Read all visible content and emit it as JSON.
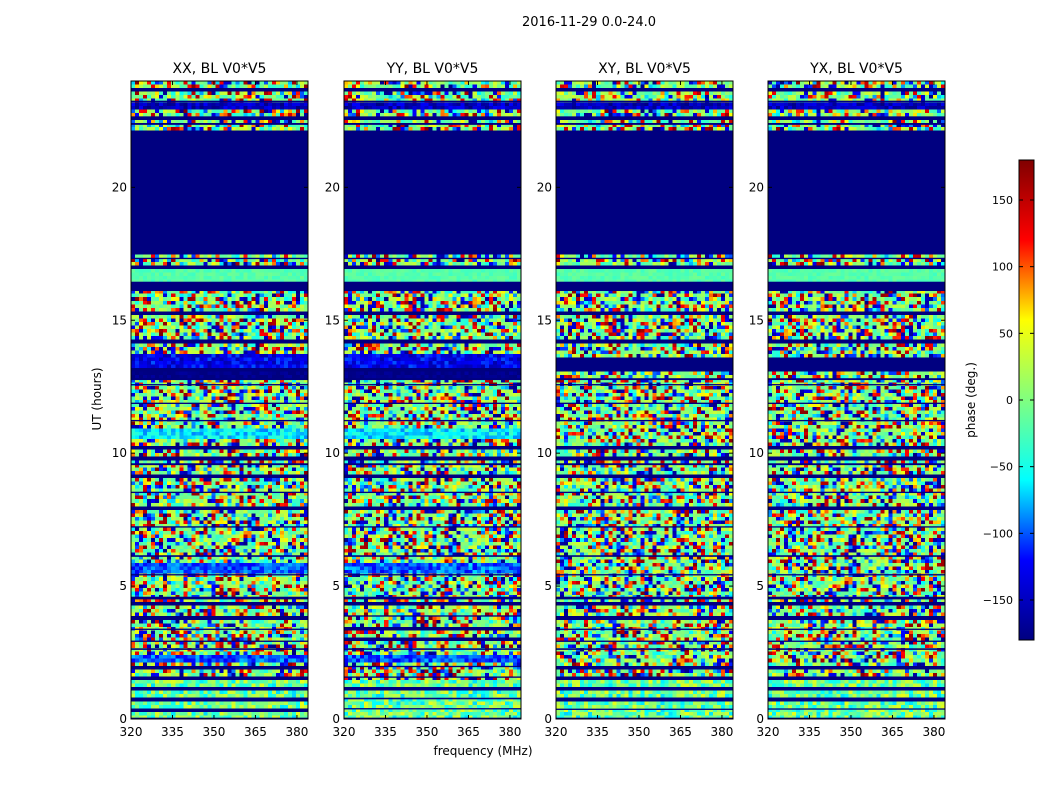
{
  "chart_data": {
    "type": "heatmap",
    "title": "2016-11-29 0.0-24.0",
    "xlabel": "frequency (MHz)",
    "ylabel": "UT (hours)",
    "colorbar_label": "phase (deg.)",
    "xlim": [
      320,
      384
    ],
    "ylim": [
      0,
      24
    ],
    "xticks": [
      320,
      335,
      350,
      365,
      380
    ],
    "yticks": [
      0,
      5,
      10,
      15,
      20
    ],
    "colorbar_range": [
      -180,
      180
    ],
    "colorbar_ticks": [
      -150,
      -100,
      -50,
      0,
      50,
      100,
      150
    ],
    "colormap": "jet",
    "colormap_colors": [
      "#000080",
      "#0000ff",
      "#00ffff",
      "#80ff80",
      "#ffff00",
      "#ff0000",
      "#800000"
    ],
    "blank_value": -180,
    "panels": [
      {
        "title": "XX, BL V0*V5",
        "blank_ut": [
          [
            0.0,
            0.05
          ],
          [
            0.33,
            0.38
          ],
          [
            0.7,
            0.75
          ],
          [
            1.1,
            1.15
          ],
          [
            1.5,
            1.57
          ],
          [
            1.9,
            1.95
          ],
          [
            2.6,
            2.66
          ],
          [
            2.9,
            2.95
          ],
          [
            3.35,
            3.4
          ],
          [
            3.8,
            3.86
          ],
          [
            4.3,
            4.36
          ],
          [
            4.5,
            4.6
          ],
          [
            5.4,
            5.45
          ],
          [
            6.1,
            6.16
          ],
          [
            7.2,
            7.25
          ],
          [
            7.9,
            7.95
          ],
          [
            8.5,
            8.55
          ],
          [
            9.1,
            9.16
          ],
          [
            9.55,
            9.62
          ],
          [
            9.8,
            9.85
          ],
          [
            10.2,
            10.25
          ],
          [
            11.2,
            11.25
          ],
          [
            11.85,
            11.9
          ],
          [
            12.55,
            12.6
          ],
          [
            12.75,
            12.82
          ],
          [
            13.1,
            13.2
          ],
          [
            14.2,
            14.25
          ],
          [
            15.25,
            15.3
          ],
          [
            16.1,
            16.2
          ],
          [
            16.3,
            16.45
          ],
          [
            16.95,
            17.05
          ],
          [
            17.3,
            17.35
          ],
          [
            17.5,
            22.1
          ],
          [
            22.35,
            22.42
          ],
          [
            22.6,
            22.67
          ],
          [
            23.2,
            23.26
          ],
          [
            23.65,
            23.72
          ]
        ],
        "bands": [
          {
            "ut": [
              0.05,
              1.5
            ],
            "base": -10,
            "spread": 60
          },
          {
            "ut": [
              2.1,
              2.4
            ],
            "base": -100,
            "spread": 25
          },
          {
            "ut": [
              5.45,
              5.9
            ],
            "base": -100,
            "spread": 25
          },
          {
            "ut": [
              10.55,
              10.9
            ],
            "base": -60,
            "spread": 30
          },
          {
            "ut": [
              12.8,
              13.1
            ],
            "base": -175,
            "spread": 10
          },
          {
            "ut": [
              13.2,
              13.7
            ],
            "base": -130,
            "spread": 30
          },
          {
            "ut": [
              16.45,
              16.95
            ],
            "base": -20,
            "spread": 12
          },
          {
            "ut": [
              22.9,
              23.2
            ],
            "base": -150,
            "spread": 30
          }
        ]
      },
      {
        "title": "YY, BL V0*V5",
        "blank_ut": [
          [
            0.0,
            0.05
          ],
          [
            0.36,
            0.41
          ],
          [
            0.74,
            0.8
          ],
          [
            1.12,
            1.18
          ],
          [
            1.55,
            1.6
          ],
          [
            1.95,
            2.0
          ],
          [
            2.6,
            2.66
          ],
          [
            3.0,
            3.05
          ],
          [
            3.4,
            3.45
          ],
          [
            3.85,
            3.9
          ],
          [
            4.3,
            4.36
          ],
          [
            4.5,
            4.6
          ],
          [
            5.4,
            5.45
          ],
          [
            6.1,
            6.16
          ],
          [
            7.2,
            7.25
          ],
          [
            7.9,
            7.95
          ],
          [
            8.5,
            8.55
          ],
          [
            9.1,
            9.16
          ],
          [
            9.55,
            9.62
          ],
          [
            9.8,
            9.85
          ],
          [
            10.2,
            10.25
          ],
          [
            11.2,
            11.25
          ],
          [
            11.85,
            11.9
          ],
          [
            12.55,
            12.6
          ],
          [
            12.75,
            12.82
          ],
          [
            13.1,
            13.2
          ],
          [
            14.2,
            14.25
          ],
          [
            15.25,
            15.3
          ],
          [
            16.1,
            16.2
          ],
          [
            16.3,
            16.45
          ],
          [
            16.95,
            17.05
          ],
          [
            17.3,
            17.35
          ],
          [
            17.5,
            22.1
          ],
          [
            22.35,
            22.42
          ],
          [
            22.6,
            22.67
          ],
          [
            23.2,
            23.26
          ],
          [
            23.65,
            23.72
          ]
        ],
        "bands": [
          {
            "ut": [
              0.05,
              1.5
            ],
            "base": -10,
            "spread": 60
          },
          {
            "ut": [
              2.1,
              2.4
            ],
            "base": -100,
            "spread": 25
          },
          {
            "ut": [
              5.45,
              5.9
            ],
            "base": -95,
            "spread": 30
          },
          {
            "ut": [
              10.55,
              10.9
            ],
            "base": -60,
            "spread": 30
          },
          {
            "ut": [
              12.8,
              13.1
            ],
            "base": -175,
            "spread": 10
          },
          {
            "ut": [
              13.2,
              13.7
            ],
            "base": -130,
            "spread": 30
          },
          {
            "ut": [
              16.45,
              16.95
            ],
            "base": -20,
            "spread": 12
          },
          {
            "ut": [
              22.9,
              23.2
            ],
            "base": -150,
            "spread": 30
          }
        ]
      },
      {
        "title": "XY, BL V0*V5",
        "blank_ut": [
          [
            0.0,
            0.05
          ],
          [
            0.34,
            0.39
          ],
          [
            0.72,
            0.78
          ],
          [
            1.1,
            1.15
          ],
          [
            1.5,
            1.57
          ],
          [
            1.9,
            1.95
          ],
          [
            2.6,
            2.66
          ],
          [
            2.9,
            2.95
          ],
          [
            3.35,
            3.4
          ],
          [
            3.8,
            3.86
          ],
          [
            4.3,
            4.36
          ],
          [
            4.5,
            4.6
          ],
          [
            5.4,
            5.45
          ],
          [
            6.1,
            6.16
          ],
          [
            7.2,
            7.25
          ],
          [
            7.9,
            7.95
          ],
          [
            8.5,
            8.55
          ],
          [
            9.1,
            9.16
          ],
          [
            9.55,
            9.62
          ],
          [
            9.8,
            9.85
          ],
          [
            10.2,
            10.25
          ],
          [
            11.2,
            11.25
          ],
          [
            11.85,
            11.9
          ],
          [
            12.55,
            12.6
          ],
          [
            12.75,
            12.82
          ],
          [
            13.1,
            13.6
          ],
          [
            14.2,
            14.25
          ],
          [
            15.25,
            15.3
          ],
          [
            16.1,
            16.2
          ],
          [
            16.3,
            16.45
          ],
          [
            16.95,
            17.05
          ],
          [
            17.3,
            17.35
          ],
          [
            17.5,
            22.1
          ],
          [
            22.35,
            22.42
          ],
          [
            22.6,
            22.67
          ],
          [
            23.2,
            23.26
          ],
          [
            23.65,
            23.72
          ]
        ],
        "bands": [
          {
            "ut": [
              0.05,
              1.5
            ],
            "base": -10,
            "spread": 60
          },
          {
            "ut": [
              16.45,
              16.95
            ],
            "base": -20,
            "spread": 12
          },
          {
            "ut": [
              22.9,
              23.2
            ],
            "base": -150,
            "spread": 30
          }
        ]
      },
      {
        "title": "YX, BL V0*V5",
        "blank_ut": [
          [
            0.0,
            0.05
          ],
          [
            0.35,
            0.4
          ],
          [
            0.73,
            0.79
          ],
          [
            1.1,
            1.15
          ],
          [
            1.5,
            1.57
          ],
          [
            1.9,
            1.95
          ],
          [
            2.6,
            2.66
          ],
          [
            2.9,
            2.95
          ],
          [
            3.35,
            3.4
          ],
          [
            3.8,
            3.86
          ],
          [
            4.3,
            4.36
          ],
          [
            4.5,
            4.6
          ],
          [
            5.4,
            5.45
          ],
          [
            6.1,
            6.16
          ],
          [
            7.2,
            7.25
          ],
          [
            7.9,
            7.95
          ],
          [
            8.5,
            8.55
          ],
          [
            9.1,
            9.16
          ],
          [
            9.55,
            9.62
          ],
          [
            9.8,
            9.85
          ],
          [
            10.2,
            10.25
          ],
          [
            11.2,
            11.25
          ],
          [
            11.85,
            11.9
          ],
          [
            12.55,
            12.6
          ],
          [
            12.75,
            12.82
          ],
          [
            13.1,
            13.6
          ],
          [
            14.2,
            14.25
          ],
          [
            15.25,
            15.3
          ],
          [
            16.1,
            16.2
          ],
          [
            16.3,
            16.45
          ],
          [
            16.95,
            17.05
          ],
          [
            17.3,
            17.35
          ],
          [
            17.5,
            22.1
          ],
          [
            22.35,
            22.42
          ],
          [
            22.6,
            22.67
          ],
          [
            23.2,
            23.26
          ],
          [
            23.65,
            23.72
          ]
        ],
        "bands": [
          {
            "ut": [
              0.05,
              1.5
            ],
            "base": -10,
            "spread": 60
          },
          {
            "ut": [
              16.45,
              16.95
            ],
            "base": -20,
            "spread": 12
          },
          {
            "ut": [
              22.9,
              23.2
            ],
            "base": -150,
            "spread": 30
          }
        ]
      }
    ]
  }
}
